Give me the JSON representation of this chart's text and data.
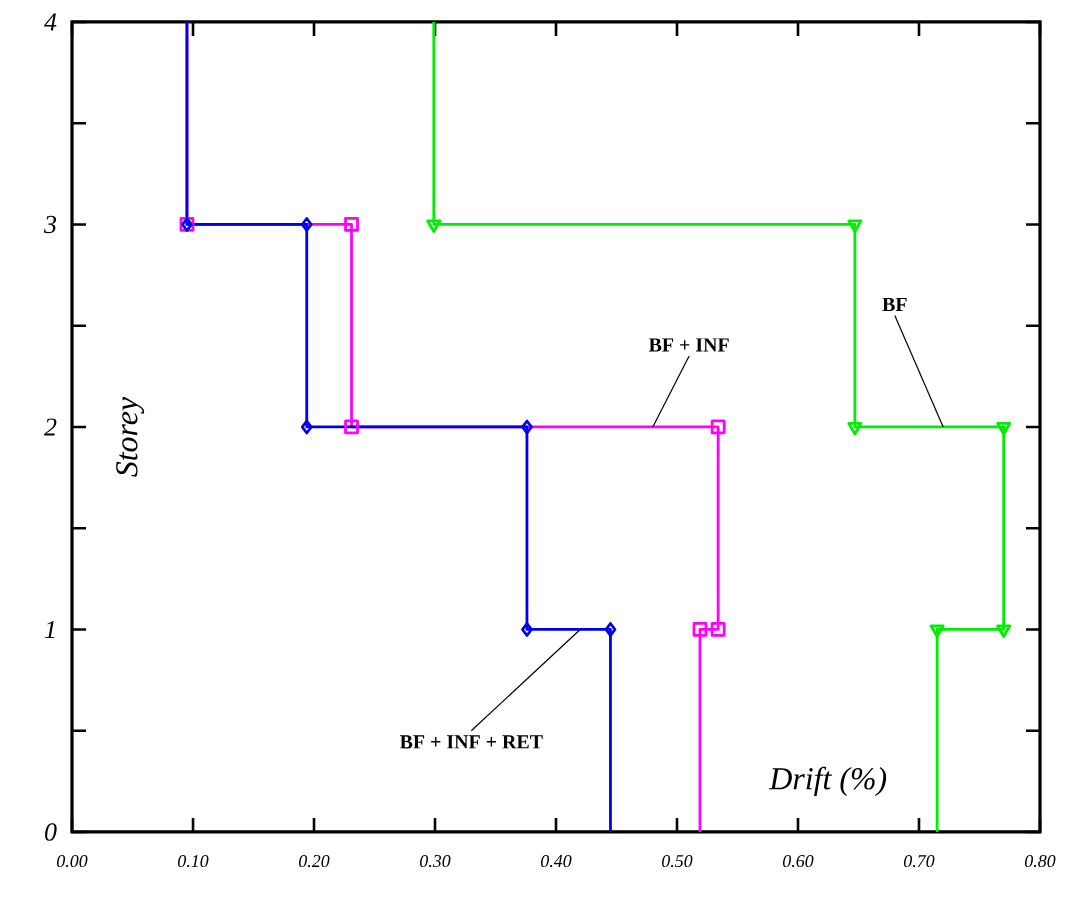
{
  "chart_data": {
    "type": "line",
    "xlabel": "Drift (%)",
    "ylabel": "Storey",
    "xlim": [
      0,
      0.8
    ],
    "ylim": [
      0,
      4
    ],
    "xticks": [
      {
        "value": 0,
        "label": "0.00"
      },
      {
        "value": 0.1,
        "label": "0.10"
      },
      {
        "value": 0.2,
        "label": "0.20"
      },
      {
        "value": 0.3,
        "label": "0.30"
      },
      {
        "value": 0.4,
        "label": "0.40"
      },
      {
        "value": 0.5,
        "label": "0.50"
      },
      {
        "value": 0.6,
        "label": "0.60"
      },
      {
        "value": 0.7,
        "label": "0.70"
      },
      {
        "value": 0.8,
        "label": "0.80"
      }
    ],
    "yticks": [
      0,
      1,
      2,
      3,
      4
    ],
    "grid": false,
    "line_style": "solid",
    "series": [
      {
        "color": "#00ee00",
        "marker": "triangle",
        "x": [
          0.715,
          0.715,
          0.77,
          0.77,
          0.647,
          0.647,
          0.299,
          0.299
        ],
        "values": [
          0,
          1,
          1,
          2,
          2,
          3,
          3,
          4
        ]
      },
      {
        "color": "#ff00ff",
        "marker": "square",
        "x": [
          0.519,
          0.519,
          0.534,
          0.534,
          0.231,
          0.231,
          0.095,
          0.095
        ],
        "values": [
          0,
          1,
          1,
          2,
          2,
          3,
          3,
          4
        ]
      },
      {
        "color": "#0000ee",
        "marker": "diamond",
        "x": [
          0.445,
          0.445,
          0.376,
          0.376,
          0.194,
          0.194,
          0.095,
          0.095
        ],
        "values": [
          0,
          1,
          1,
          2,
          2,
          3,
          3,
          4
        ]
      }
    ],
    "annotations": [
      {
        "text": "BF",
        "x": 0.72,
        "y": 2
      },
      {
        "text": "BF + INF",
        "x": 0.48,
        "y": 2
      },
      {
        "text": "BF + INF + RET",
        "x": 0.42,
        "y": 1
      }
    ]
  }
}
